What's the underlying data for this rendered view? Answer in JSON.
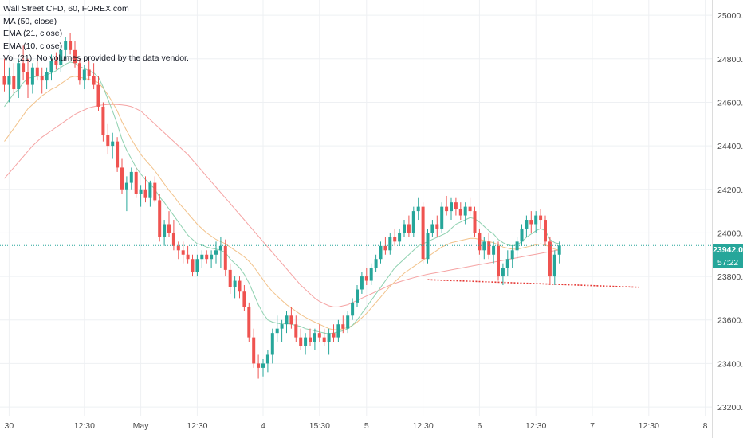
{
  "legend": {
    "symbol": "Wall Street CFD, 60, FOREX.com",
    "ma50": "MA (50, close)",
    "ema21": "EMA (21, close)",
    "ema10": "EMA (10, close)",
    "vol": "Vol (21): No volumes provided by the data vendor."
  },
  "price_labels": {
    "last": "23942.0",
    "countdown": "57:22"
  },
  "colors": {
    "up": "#26a69a",
    "down": "#ef5350",
    "ma50": "#f5a3a3",
    "ema21": "#f2c28a",
    "ema10": "#8fd1b0",
    "neckline": "#e53935",
    "last_price": "#26a69a"
  },
  "chart_data": {
    "type": "candlestick",
    "ylim": [
      23160,
      25070
    ],
    "y_ticks": [
      23200,
      23400,
      23600,
      23800,
      24000,
      24200,
      24400,
      24600,
      24800,
      25000
    ],
    "y_tick_labels": [
      "23200.0",
      "23400.0",
      "23600.0",
      "23800.0",
      "24000.0",
      "24200.0",
      "24400.0",
      "24600.0",
      "24800.0",
      "25000.0"
    ],
    "x_ticks": [
      {
        "bar": 1,
        "label": "30"
      },
      {
        "bar": 17,
        "label": "12:30"
      },
      {
        "bar": 29,
        "label": "May"
      },
      {
        "bar": 41,
        "label": "12:30"
      },
      {
        "bar": 55,
        "label": "4"
      },
      {
        "bar": 67,
        "label": "15:30"
      },
      {
        "bar": 77,
        "label": "5"
      },
      {
        "bar": 89,
        "label": "12:30"
      },
      {
        "bar": 101,
        "label": "6"
      },
      {
        "bar": 113,
        "label": "12:30"
      },
      {
        "bar": 125,
        "label": "7"
      },
      {
        "bar": 137,
        "label": "12:30"
      },
      {
        "bar": 149,
        "label": "8"
      }
    ],
    "ohlc": [
      [
        24720,
        24800,
        24650,
        24680
      ],
      [
        24680,
        24760,
        24600,
        24720
      ],
      [
        24720,
        24780,
        24640,
        24660
      ],
      [
        24660,
        24800,
        24620,
        24780
      ],
      [
        24780,
        24860,
        24700,
        24740
      ],
      [
        24740,
        24800,
        24620,
        24680
      ],
      [
        24680,
        24780,
        24640,
        24760
      ],
      [
        24760,
        24820,
        24700,
        24720
      ],
      [
        24720,
        24760,
        24640,
        24700
      ],
      [
        24700,
        24760,
        24660,
        24740
      ],
      [
        24740,
        24820,
        24700,
        24790
      ],
      [
        24790,
        24830,
        24750,
        24770
      ],
      [
        24770,
        24860,
        24740,
        24840
      ],
      [
        24840,
        24900,
        24800,
        24880
      ],
      [
        24880,
        24920,
        24820,
        24840
      ],
      [
        24840,
        24880,
        24760,
        24780
      ],
      [
        24780,
        24800,
        24680,
        24700
      ],
      [
        24700,
        24770,
        24660,
        24750
      ],
      [
        24750,
        24790,
        24700,
        24720
      ],
      [
        24720,
        24780,
        24660,
        24680
      ],
      [
        24680,
        24720,
        24560,
        24580
      ],
      [
        24580,
        24600,
        24420,
        24450
      ],
      [
        24450,
        24500,
        24360,
        24400
      ],
      [
        24400,
        24460,
        24340,
        24420
      ],
      [
        24420,
        24440,
        24280,
        24300
      ],
      [
        24300,
        24340,
        24180,
        24200
      ],
      [
        24200,
        24260,
        24100,
        24230
      ],
      [
        24230,
        24300,
        24200,
        24280
      ],
      [
        24280,
        24300,
        24160,
        24180
      ],
      [
        24180,
        24220,
        24120,
        24200
      ],
      [
        24200,
        24260,
        24140,
        24160
      ],
      [
        24160,
        24240,
        24120,
        24230
      ],
      [
        24230,
        24260,
        24140,
        24150
      ],
      [
        24150,
        24180,
        23960,
        23980
      ],
      [
        23980,
        24060,
        23940,
        24040
      ],
      [
        24040,
        24100,
        23980,
        24000
      ],
      [
        24000,
        24060,
        23920,
        23940
      ],
      [
        23940,
        23960,
        23880,
        23920
      ],
      [
        23920,
        23960,
        23860,
        23900
      ],
      [
        23900,
        23940,
        23860,
        23880
      ],
      [
        23880,
        23900,
        23800,
        23820
      ],
      [
        23820,
        23900,
        23800,
        23880
      ],
      [
        23880,
        23920,
        23840,
        23900
      ],
      [
        23900,
        23920,
        23860,
        23880
      ],
      [
        23880,
        23920,
        23840,
        23900
      ],
      [
        23900,
        23960,
        23860,
        23920
      ],
      [
        23920,
        23980,
        23840,
        23940
      ],
      [
        23940,
        23970,
        23800,
        23830
      ],
      [
        23830,
        23860,
        23720,
        23750
      ],
      [
        23750,
        23800,
        23700,
        23780
      ],
      [
        23780,
        23800,
        23700,
        23730
      ],
      [
        23730,
        23760,
        23640,
        23660
      ],
      [
        23660,
        23680,
        23500,
        23520
      ],
      [
        23520,
        23560,
        23380,
        23400
      ],
      [
        23400,
        23440,
        23330,
        23380
      ],
      [
        23380,
        23420,
        23340,
        23400
      ],
      [
        23400,
        23460,
        23360,
        23440
      ],
      [
        23440,
        23560,
        23400,
        23540
      ],
      [
        23540,
        23620,
        23500,
        23560
      ],
      [
        23560,
        23600,
        23500,
        23580
      ],
      [
        23580,
        23640,
        23540,
        23620
      ],
      [
        23620,
        23660,
        23560,
        23580
      ],
      [
        23580,
        23620,
        23500,
        23520
      ],
      [
        23520,
        23560,
        23460,
        23480
      ],
      [
        23480,
        23540,
        23440,
        23520
      ],
      [
        23520,
        23560,
        23480,
        23500
      ],
      [
        23500,
        23560,
        23460,
        23540
      ],
      [
        23540,
        23580,
        23500,
        23520
      ],
      [
        23520,
        23560,
        23480,
        23500
      ],
      [
        23500,
        23560,
        23440,
        23540
      ],
      [
        23540,
        23580,
        23500,
        23520
      ],
      [
        23520,
        23600,
        23500,
        23580
      ],
      [
        23580,
        23620,
        23540,
        23560
      ],
      [
        23560,
        23640,
        23540,
        23620
      ],
      [
        23620,
        23700,
        23600,
        23680
      ],
      [
        23680,
        23760,
        23660,
        23740
      ],
      [
        23740,
        23820,
        23720,
        23800
      ],
      [
        23800,
        23840,
        23760,
        23780
      ],
      [
        23780,
        23860,
        23760,
        23840
      ],
      [
        23840,
        23900,
        23820,
        23880
      ],
      [
        23880,
        23960,
        23860,
        23940
      ],
      [
        23940,
        23980,
        23900,
        23920
      ],
      [
        23920,
        24000,
        23900,
        23980
      ],
      [
        23980,
        24020,
        23940,
        23960
      ],
      [
        23960,
        24020,
        23940,
        24000
      ],
      [
        24000,
        24060,
        23980,
        24040
      ],
      [
        24040,
        24080,
        23980,
        24000
      ],
      [
        24000,
        24120,
        23980,
        24100
      ],
      [
        24100,
        24160,
        24060,
        24120
      ],
      [
        24120,
        24140,
        23860,
        23880
      ],
      [
        23880,
        24020,
        23860,
        24000
      ],
      [
        24000,
        24060,
        23980,
        24040
      ],
      [
        24040,
        24080,
        23980,
        24020
      ],
      [
        24020,
        24140,
        24000,
        24120
      ],
      [
        24120,
        24170,
        24080,
        24100
      ],
      [
        24100,
        24160,
        24060,
        24140
      ],
      [
        24140,
        24160,
        24080,
        24110
      ],
      [
        24110,
        24140,
        24060,
        24080
      ],
      [
        24080,
        24140,
        24040,
        24120
      ],
      [
        24120,
        24160,
        24080,
        24100
      ],
      [
        24100,
        24120,
        23980,
        24000
      ],
      [
        24000,
        24020,
        23900,
        23920
      ],
      [
        23920,
        23980,
        23880,
        23960
      ],
      [
        23960,
        24000,
        23880,
        23900
      ],
      [
        23900,
        23960,
        23860,
        23940
      ],
      [
        23940,
        23960,
        23780,
        23800
      ],
      [
        23800,
        23860,
        23760,
        23840
      ],
      [
        23840,
        23920,
        23800,
        23880
      ],
      [
        23880,
        23940,
        23840,
        23920
      ],
      [
        23920,
        23980,
        23880,
        23960
      ],
      [
        23960,
        24040,
        23940,
        24020
      ],
      [
        24020,
        24080,
        23980,
        24060
      ],
      [
        24060,
        24100,
        24000,
        24040
      ],
      [
        24040,
        24100,
        24000,
        24080
      ],
      [
        24080,
        24110,
        24020,
        24060
      ],
      [
        24060,
        24080,
        23940,
        23960
      ],
      [
        23960,
        23980,
        23760,
        23800
      ],
      [
        23800,
        23920,
        23760,
        23900
      ],
      [
        23900,
        23960,
        23860,
        23942
      ]
    ],
    "ema10": [
      24580,
      24610,
      24640,
      24660,
      24690,
      24710,
      24715,
      24720,
      24720,
      24725,
      24735,
      24745,
      24760,
      24775,
      24785,
      24780,
      24765,
      24755,
      24745,
      24735,
      24715,
      24670,
      24615,
      24560,
      24500,
      24430,
      24380,
      24340,
      24300,
      24270,
      24245,
      24225,
      24200,
      24165,
      24140,
      24110,
      24080,
      24050,
      24020,
      23990,
      23970,
      23950,
      23945,
      23935,
      23930,
      23925,
      23920,
      23910,
      23880,
      23860,
      23840,
      23810,
      23770,
      23720,
      23670,
      23630,
      23600,
      23590,
      23585,
      23580,
      23585,
      23580,
      23575,
      23570,
      23560,
      23555,
      23550,
      23545,
      23540,
      23535,
      23540,
      23545,
      23550,
      23560,
      23575,
      23600,
      23630,
      23660,
      23690,
      23720,
      23750,
      23780,
      23810,
      23840,
      23860,
      23880,
      23900,
      23920,
      23940,
      23950,
      23960,
      23970,
      23980,
      23990,
      24000,
      24020,
      24040,
      24050,
      24060,
      24070,
      24065,
      24050,
      24030,
      24010,
      23995,
      23970,
      23955,
      23945,
      23940,
      23945,
      23960,
      23980,
      23995,
      24010,
      24020,
      24010,
      23970,
      23955,
      23950
    ],
    "ema21": [
      24420,
      24450,
      24480,
      24510,
      24540,
      24570,
      24590,
      24610,
      24630,
      24645,
      24660,
      24670,
      24685,
      24700,
      24715,
      24720,
      24715,
      24710,
      24705,
      24700,
      24690,
      24665,
      24635,
      24600,
      24560,
      24510,
      24470,
      24430,
      24395,
      24360,
      24335,
      24310,
      24285,
      24255,
      24225,
      24195,
      24170,
      24140,
      24115,
      24090,
      24065,
      24040,
      24020,
      24000,
      23985,
      23970,
      23960,
      23950,
      23935,
      23920,
      23905,
      23890,
      23870,
      23845,
      23815,
      23785,
      23755,
      23730,
      23710,
      23690,
      23670,
      23655,
      23640,
      23625,
      23612,
      23600,
      23590,
      23580,
      23570,
      23560,
      23555,
      23555,
      23560,
      23565,
      23575,
      23590,
      23610,
      23630,
      23655,
      23680,
      23705,
      23730,
      23755,
      23775,
      23795,
      23815,
      23830,
      23845,
      23860,
      23875,
      23890,
      23905,
      23920,
      23935,
      23945,
      23955,
      23960,
      23965,
      23970,
      23975,
      23975,
      23970,
      23965,
      23960,
      23955,
      23945,
      23935,
      23930,
      23925,
      23925,
      23930,
      23935,
      23940,
      23945,
      23950,
      23945,
      23935,
      23925,
      23920
    ],
    "ma50": [
      24250,
      24275,
      24300,
      24325,
      24350,
      24375,
      24400,
      24420,
      24440,
      24455,
      24470,
      24485,
      24500,
      24515,
      24530,
      24545,
      24555,
      24565,
      24575,
      24580,
      24585,
      24588,
      24590,
      24590,
      24590,
      24588,
      24585,
      24580,
      24570,
      24560,
      24540,
      24520,
      24500,
      24480,
      24460,
      24440,
      24420,
      24400,
      24380,
      24360,
      24335,
      24310,
      24285,
      24260,
      24235,
      24210,
      24185,
      24160,
      24135,
      24110,
      24085,
      24060,
      24035,
      24010,
      23985,
      23960,
      23935,
      23910,
      23885,
      23860,
      23835,
      23810,
      23785,
      23760,
      23740,
      23720,
      23700,
      23685,
      23675,
      23665,
      23660,
      23660,
      23665,
      23670,
      23680,
      23690,
      23700,
      23710,
      23720,
      23730,
      23740,
      23750,
      23760,
      23768,
      23775,
      23782,
      23788,
      23794,
      23800,
      23805,
      23810,
      23814,
      23818,
      23822,
      23826,
      23830,
      23834,
      23838,
      23842,
      23846,
      23850,
      23854,
      23858,
      23862,
      23866,
      23870,
      23874,
      23878,
      23882,
      23886,
      23890,
      23894,
      23898,
      23902,
      23906,
      23910,
      23914,
      23918,
      23922
    ],
    "neckline": [
      [
        90,
        23785
      ],
      [
        135,
        23750
      ]
    ],
    "last_price": 23942
  }
}
